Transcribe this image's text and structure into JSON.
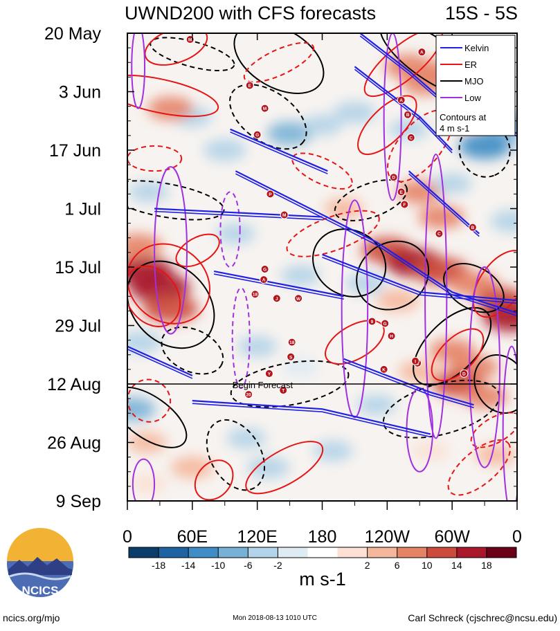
{
  "chart_data": {
    "type": "heatmap",
    "title": "UWND200 with CFS forecasts",
    "lat_band": "15S - 5S",
    "x_ticks": [
      "0",
      "60E",
      "120E",
      "180",
      "120W",
      "60W",
      "0"
    ],
    "x_tick_lon": [
      0,
      60,
      120,
      180,
      240,
      300,
      360
    ],
    "y_ticks": [
      "20 May",
      "3 Jun",
      "17 Jun",
      "1 Jul",
      "15 Jul",
      "29 Jul",
      "12 Aug",
      "26 Aug",
      "9 Sep"
    ],
    "y_tick_day": [
      0,
      14,
      28,
      42,
      56,
      70,
      84,
      98,
      112
    ],
    "xlim": [
      0,
      360
    ],
    "ylim_days": [
      0,
      112
    ],
    "forecast_start_day": 84,
    "forecast_label": "Begin Forecast",
    "legend": {
      "placement": "top-right",
      "entries": [
        {
          "name": "Kelvin",
          "color": "#1f1fe6"
        },
        {
          "name": "ER",
          "color": "#e61414"
        },
        {
          "name": "MJO",
          "color": "#000000"
        },
        {
          "name": "Low",
          "color": "#a030e0"
        }
      ],
      "note_line1": "Contours at",
      "note_line2": "4 m s-1"
    },
    "colorbar": {
      "labels": [
        "-18",
        "-14",
        "-10",
        "-6",
        "-2",
        "2",
        "6",
        "10",
        "14",
        "18"
      ],
      "colors": [
        "#0b3d6b",
        "#1e64a3",
        "#3f8dc4",
        "#78b1d6",
        "#b3d3e8",
        "#deebf3",
        "#ffffff",
        "#fbe0d3",
        "#f5b79b",
        "#e58366",
        "#cd4b3c",
        "#a8182a",
        "#6b0019"
      ],
      "units": "m s-1"
    },
    "anomaly_blobs": [
      {
        "lon": 15,
        "day": 57,
        "value": 18
      },
      {
        "lon": 30,
        "day": 61,
        "value": 20
      },
      {
        "lon": 40,
        "day": 66,
        "value": 16
      },
      {
        "lon": 10,
        "day": 51,
        "value": 12
      },
      {
        "lon": 12,
        "day": 74,
        "value": -8
      },
      {
        "lon": 18,
        "day": 98,
        "value": 6
      },
      {
        "lon": 5,
        "day": 90,
        "value": -10
      },
      {
        "lon": 60,
        "day": 20,
        "value": -6
      },
      {
        "lon": 90,
        "day": 28,
        "value": -8
      },
      {
        "lon": 150,
        "day": 24,
        "value": -10
      },
      {
        "lon": 180,
        "day": 22,
        "value": -6
      },
      {
        "lon": 210,
        "day": 19,
        "value": -8
      },
      {
        "lon": 260,
        "day": 23,
        "value": -6
      },
      {
        "lon": 120,
        "day": 75,
        "value": -6
      },
      {
        "lon": 110,
        "day": 97,
        "value": -6
      },
      {
        "lon": 130,
        "day": 104,
        "value": -8
      },
      {
        "lon": 230,
        "day": 89,
        "value": -6
      },
      {
        "lon": 40,
        "day": 18,
        "value": 10
      },
      {
        "lon": 260,
        "day": 8,
        "value": 12
      },
      {
        "lon": 275,
        "day": 12,
        "value": 10
      },
      {
        "lon": 300,
        "day": 9,
        "value": 12
      },
      {
        "lon": 315,
        "day": 20,
        "value": 10
      },
      {
        "lon": 345,
        "day": 26,
        "value": -8
      },
      {
        "lon": 330,
        "day": 27,
        "value": -14
      },
      {
        "lon": 350,
        "day": 22,
        "value": -12
      },
      {
        "lon": 270,
        "day": 38,
        "value": 10
      },
      {
        "lon": 290,
        "day": 44,
        "value": 10
      },
      {
        "lon": 200,
        "day": 42,
        "value": 6
      },
      {
        "lon": 240,
        "day": 52,
        "value": 14
      },
      {
        "lon": 265,
        "day": 55,
        "value": 18
      },
      {
        "lon": 290,
        "day": 57,
        "value": 16
      },
      {
        "lon": 320,
        "day": 60,
        "value": 12
      },
      {
        "lon": 345,
        "day": 64,
        "value": 14
      },
      {
        "lon": 355,
        "day": 68,
        "value": 18
      },
      {
        "lon": 300,
        "day": 76,
        "value": 10
      },
      {
        "lon": 320,
        "day": 80,
        "value": 12
      },
      {
        "lon": 305,
        "day": 84,
        "value": 14
      },
      {
        "lon": 330,
        "day": 87,
        "value": 10
      },
      {
        "lon": 270,
        "day": 81,
        "value": 8
      },
      {
        "lon": 250,
        "day": 64,
        "value": 8
      },
      {
        "lon": 300,
        "day": 36,
        "value": -6
      },
      {
        "lon": 355,
        "day": 45,
        "value": -8
      },
      {
        "lon": 340,
        "day": 101,
        "value": 6
      },
      {
        "lon": 220,
        "day": 60,
        "value": -6
      },
      {
        "lon": 160,
        "day": 58,
        "value": -6
      },
      {
        "lon": 100,
        "day": 48,
        "value": -6
      },
      {
        "lon": 20,
        "day": 38,
        "value": -6
      },
      {
        "lon": 60,
        "day": 104,
        "value": 8
      },
      {
        "lon": 20,
        "day": 108,
        "value": 4
      },
      {
        "lon": 160,
        "day": 80,
        "value": -4
      },
      {
        "lon": 190,
        "day": 100,
        "value": -6
      },
      {
        "lon": 280,
        "day": 100,
        "value": 4
      }
    ],
    "kelvin_tracks": [
      [
        [
          215,
          0
        ],
        [
          260,
          9
        ],
        [
          300,
          18
        ],
        [
          360,
          24
        ]
      ],
      [
        [
          210,
          8
        ],
        [
          270,
          20
        ],
        [
          300,
          28
        ]
      ],
      [
        [
          95,
          23
        ],
        [
          185,
          33
        ]
      ],
      [
        [
          100,
          33
        ],
        [
          230,
          50
        ],
        [
          300,
          62
        ],
        [
          360,
          67
        ]
      ],
      [
        [
          25,
          42
        ],
        [
          180,
          44
        ]
      ],
      [
        [
          180,
          53
        ],
        [
          270,
          62
        ],
        [
          360,
          64
        ]
      ],
      [
        [
          0,
          75
        ],
        [
          60,
          82
        ]
      ],
      [
        [
          200,
          78
        ],
        [
          280,
          86
        ],
        [
          320,
          89
        ]
      ],
      [
        [
          60,
          88
        ],
        [
          180,
          90
        ],
        [
          280,
          96
        ]
      ],
      [
        [
          260,
          33
        ],
        [
          325,
          48
        ]
      ],
      [
        [
          80,
          57
        ],
        [
          200,
          63
        ]
      ]
    ],
    "er_contours": [
      {
        "lon": 30,
        "day": 15,
        "rx": 55,
        "ry": 4,
        "rot": 12,
        "dash": false
      },
      {
        "lon": 38,
        "day": 60,
        "rx": 40,
        "ry": 9,
        "rot": 38,
        "dash": false
      },
      {
        "lon": 23,
        "day": 63,
        "rx": 30,
        "ry": 6,
        "rot": 55,
        "dash": false
      },
      {
        "lon": 210,
        "day": 74,
        "rx": 30,
        "ry": 4,
        "rot": -30,
        "dash": false
      },
      {
        "lon": 240,
        "day": 22,
        "rx": 35,
        "ry": 4,
        "rot": -45,
        "dash": false
      },
      {
        "lon": 255,
        "day": 7,
        "rx": 45,
        "ry": 4,
        "rot": -40,
        "dash": false
      },
      {
        "lon": 270,
        "day": 27,
        "rx": 40,
        "ry": 5,
        "rot": -50,
        "dash": true
      },
      {
        "lon": 345,
        "day": 60,
        "rx": 35,
        "ry": 5,
        "rot": -55,
        "dash": false
      },
      {
        "lon": 305,
        "day": 77,
        "rx": 30,
        "ry": 4,
        "rot": -45,
        "dash": false
      },
      {
        "lon": 145,
        "day": 104,
        "rx": 40,
        "ry": 4,
        "rot": -30,
        "dash": false
      },
      {
        "lon": 80,
        "day": 107,
        "rx": 20,
        "ry": 4,
        "rot": -50,
        "dash": false
      },
      {
        "lon": 325,
        "day": 104,
        "rx": 35,
        "ry": 4,
        "rot": -40,
        "dash": true
      },
      {
        "lon": 340,
        "day": 95,
        "rx": 25,
        "ry": 3,
        "rot": -30,
        "dash": true
      },
      {
        "lon": 65,
        "day": 52,
        "rx": 22,
        "ry": 3,
        "rot": -30,
        "dash": false
      },
      {
        "lon": 20,
        "day": 88,
        "rx": 20,
        "ry": 5,
        "rot": 40,
        "dash": true
      },
      {
        "lon": 45,
        "day": 3,
        "rx": 30,
        "ry": 4,
        "rot": -20,
        "dash": false
      },
      {
        "lon": 140,
        "day": 7,
        "rx": 35,
        "ry": 3,
        "rot": -25,
        "dash": true
      },
      {
        "lon": 180,
        "day": 33,
        "rx": 30,
        "ry": 3,
        "rot": 25,
        "dash": true
      },
      {
        "lon": 25,
        "day": 30,
        "rx": 25,
        "ry": 3,
        "rot": 0,
        "dash": true
      },
      {
        "lon": 190,
        "day": 48,
        "rx": 45,
        "ry": 4,
        "rot": -20,
        "dash": true
      }
    ],
    "mjo_contours": [
      {
        "lon": 140,
        "day": 6,
        "rx": 45,
        "ry": 7,
        "rot": 30,
        "dash": false
      },
      {
        "lon": 280,
        "day": 6,
        "rx": 55,
        "ry": 5,
        "rot": 35,
        "dash": false
      },
      {
        "lon": 40,
        "day": 65,
        "rx": 45,
        "ry": 9,
        "rot": 45,
        "dash": false
      },
      {
        "lon": 20,
        "day": 92,
        "rx": 40,
        "ry": 5,
        "rot": 35,
        "dash": false
      },
      {
        "lon": 205,
        "day": 55,
        "rx": 30,
        "ry": 9,
        "rot": -60,
        "dash": false
      },
      {
        "lon": 245,
        "day": 58,
        "rx": 30,
        "ry": 9,
        "rot": 55,
        "dash": false
      },
      {
        "lon": 320,
        "day": 61,
        "rx": 30,
        "ry": 5,
        "rot": 30,
        "dash": false
      },
      {
        "lon": 300,
        "day": 75,
        "rx": 45,
        "ry": 6,
        "rot": -45,
        "dash": false
      },
      {
        "lon": 345,
        "day": 84,
        "rx": 28,
        "ry": 6,
        "rot": 60,
        "dash": false
      },
      {
        "lon": 130,
        "day": 20,
        "rx": 40,
        "ry": 6,
        "rot": 35,
        "dash": true
      },
      {
        "lon": 35,
        "day": 40,
        "rx": 55,
        "ry": 4,
        "rot": 10,
        "dash": true
      },
      {
        "lon": 60,
        "day": 76,
        "rx": 30,
        "ry": 5,
        "rot": 25,
        "dash": true
      },
      {
        "lon": 150,
        "day": 84,
        "rx": 55,
        "ry": 5,
        "rot": -10,
        "dash": true
      },
      {
        "lon": 100,
        "day": 101,
        "rx": 35,
        "ry": 6,
        "rot": 60,
        "dash": true
      },
      {
        "lon": 290,
        "day": 90,
        "rx": 55,
        "ry": 6,
        "rot": -15,
        "dash": true
      },
      {
        "lon": 330,
        "day": 28,
        "rx": 25,
        "ry": 6,
        "rot": 70,
        "dash": true
      },
      {
        "lon": 225,
        "day": 40,
        "rx": 35,
        "ry": 4,
        "rot": -20,
        "dash": true
      },
      {
        "lon": 60,
        "day": 5,
        "rx": 40,
        "ry": 3,
        "rot": 15,
        "dash": true
      }
    ],
    "low_contours": [
      {
        "lon": 95,
        "day": 47,
        "rx": 9,
        "ry": 9,
        "dash": true
      },
      {
        "lon": 105,
        "day": 73,
        "rx": 8,
        "ry": 12,
        "dash": true
      },
      {
        "lon": 245,
        "day": 20,
        "rx": 8,
        "ry": 20,
        "dash": false
      },
      {
        "lon": 210,
        "day": 66,
        "rx": 12,
        "ry": 26,
        "dash": false
      },
      {
        "lon": 285,
        "day": 63,
        "rx": 10,
        "ry": 34,
        "dash": false
      },
      {
        "lon": 330,
        "day": 80,
        "rx": 14,
        "ry": 24,
        "dash": false
      },
      {
        "lon": 40,
        "day": 52,
        "rx": 15,
        "ry": 20,
        "dash": false
      },
      {
        "lon": 355,
        "day": 95,
        "rx": 8,
        "ry": 20,
        "dash": false
      },
      {
        "lon": 15,
        "day": 108,
        "rx": 10,
        "ry": 6,
        "dash": false
      },
      {
        "lon": 270,
        "day": 95,
        "rx": 12,
        "ry": 10,
        "dash": false
      },
      {
        "lon": 10,
        "day": 8,
        "rx": 6,
        "ry": 10,
        "dash": false
      }
    ],
    "storm_markers": [
      {
        "lon": 58,
        "day": 1.5,
        "label": "M"
      },
      {
        "lon": 272,
        "day": 4.5,
        "label": "A"
      },
      {
        "lon": 113,
        "day": 12.5,
        "label": "E"
      },
      {
        "lon": 127,
        "day": 18,
        "label": "M"
      },
      {
        "lon": 120,
        "day": 24.3,
        "label": "G"
      },
      {
        "lon": 253,
        "day": 16,
        "label": "A"
      },
      {
        "lon": 259,
        "day": 19.5,
        "label": "B"
      },
      {
        "lon": 262,
        "day": 25,
        "label": "C"
      },
      {
        "lon": 246,
        "day": 34.5,
        "label": "D"
      },
      {
        "lon": 253,
        "day": 38,
        "label": "E"
      },
      {
        "lon": 256,
        "day": 41,
        "label": "F"
      },
      {
        "lon": 132,
        "day": 38.5,
        "label": "P"
      },
      {
        "lon": 145,
        "day": 43.5,
        "label": "M"
      },
      {
        "lon": 288,
        "day": 48,
        "label": "C"
      },
      {
        "lon": 319,
        "day": 46.5,
        "label": "B"
      },
      {
        "lon": 127,
        "day": 56.5,
        "label": "G"
      },
      {
        "lon": 126,
        "day": 59,
        "label": "A"
      },
      {
        "lon": 118,
        "day": 62.5,
        "label": "18"
      },
      {
        "lon": 138,
        "day": 63.5,
        "label": "J"
      },
      {
        "lon": 158,
        "day": 63.5,
        "label": "W"
      },
      {
        "lon": 226,
        "day": 69,
        "label": "9"
      },
      {
        "lon": 238,
        "day": 69.5,
        "label": "G"
      },
      {
        "lon": 152,
        "day": 74,
        "label": "18"
      },
      {
        "lon": 151,
        "day": 77.5,
        "label": "S"
      },
      {
        "lon": 244,
        "day": 72.5,
        "label": "H"
      },
      {
        "lon": 268,
        "day": 79,
        "label": "C"
      },
      {
        "lon": 266,
        "day": 78.5,
        "label": "I"
      },
      {
        "lon": 237,
        "day": 80.5,
        "label": "K"
      },
      {
        "lon": 311,
        "day": 81.5,
        "label": "D"
      },
      {
        "lon": 131,
        "day": 81.5,
        "label": "Y"
      },
      {
        "lon": 144,
        "day": 85.5,
        "label": "T"
      },
      {
        "lon": 112,
        "day": 86.5,
        "label": "20"
      }
    ]
  },
  "logo": {
    "text": "NCICS"
  },
  "footer": {
    "left": "ncics.org/mjo",
    "center": "Mon 2018-08-13 1010 UTC",
    "right": "Carl Schreck (cjschrec@ncsu.edu)"
  }
}
